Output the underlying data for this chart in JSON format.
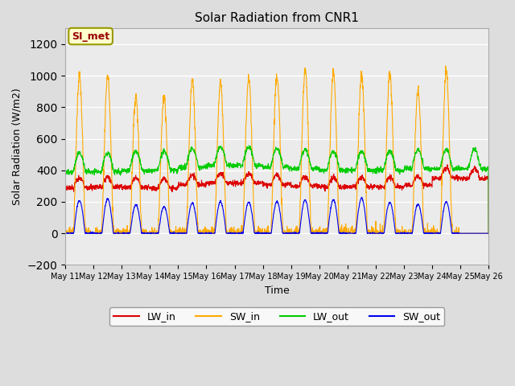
{
  "title": "Solar Radiation from CNR1",
  "xlabel": "Time",
  "ylabel": "Solar Radiation (W/m2)",
  "ylim": [
    -200,
    1300
  ],
  "yticks": [
    -200,
    0,
    200,
    400,
    600,
    800,
    1000,
    1200
  ],
  "n_days": 15,
  "day_start": 11,
  "month": "May",
  "colors": {
    "LW_in": "#dd0000",
    "SW_in": "#ffaa00",
    "LW_out": "#00cc00",
    "SW_out": "#0000ee"
  },
  "bg_color": "#dddddd",
  "plot_bg": "#ebebeb",
  "grid_color": "#ffffff",
  "annotation_text": "SI_met",
  "annotation_bg": "#ffffcc",
  "annotation_border": "#999900",
  "annotation_text_color": "#990000",
  "sw_in_peaks": [
    1000,
    1000,
    870,
    870,
    970,
    960,
    980,
    1010,
    1040,
    1030,
    1020,
    1025,
    910,
    1030,
    0
  ],
  "figsize": [
    6.4,
    4.8
  ],
  "dpi": 100
}
